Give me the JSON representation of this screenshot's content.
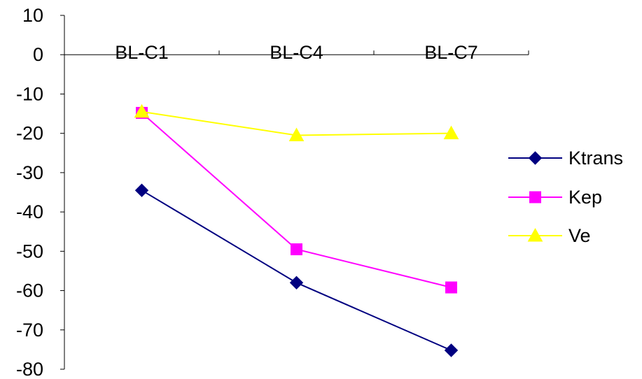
{
  "chart_data": {
    "type": "line",
    "categories": [
      "BL-C1",
      "BL-C4",
      "BL-C7"
    ],
    "series": [
      {
        "name": "Ktrans",
        "values": [
          -34.5,
          -58.0,
          -75.2
        ],
        "color": "#000080",
        "marker": "diamond"
      },
      {
        "name": "Kep",
        "values": [
          -14.8,
          -49.5,
          -59.2
        ],
        "color": "#FF00FF",
        "marker": "square"
      },
      {
        "name": "Ve",
        "values": [
          -14.5,
          -20.5,
          -20.0
        ],
        "color": "#FFFF00",
        "marker": "triangle"
      }
    ],
    "ylim": [
      -80,
      10
    ],
    "yticks": [
      10,
      0,
      -10,
      -20,
      -30,
      -40,
      -50,
      -60,
      -70,
      -80
    ],
    "xaxis_position": "top",
    "grid": false,
    "legend_position": "right"
  }
}
